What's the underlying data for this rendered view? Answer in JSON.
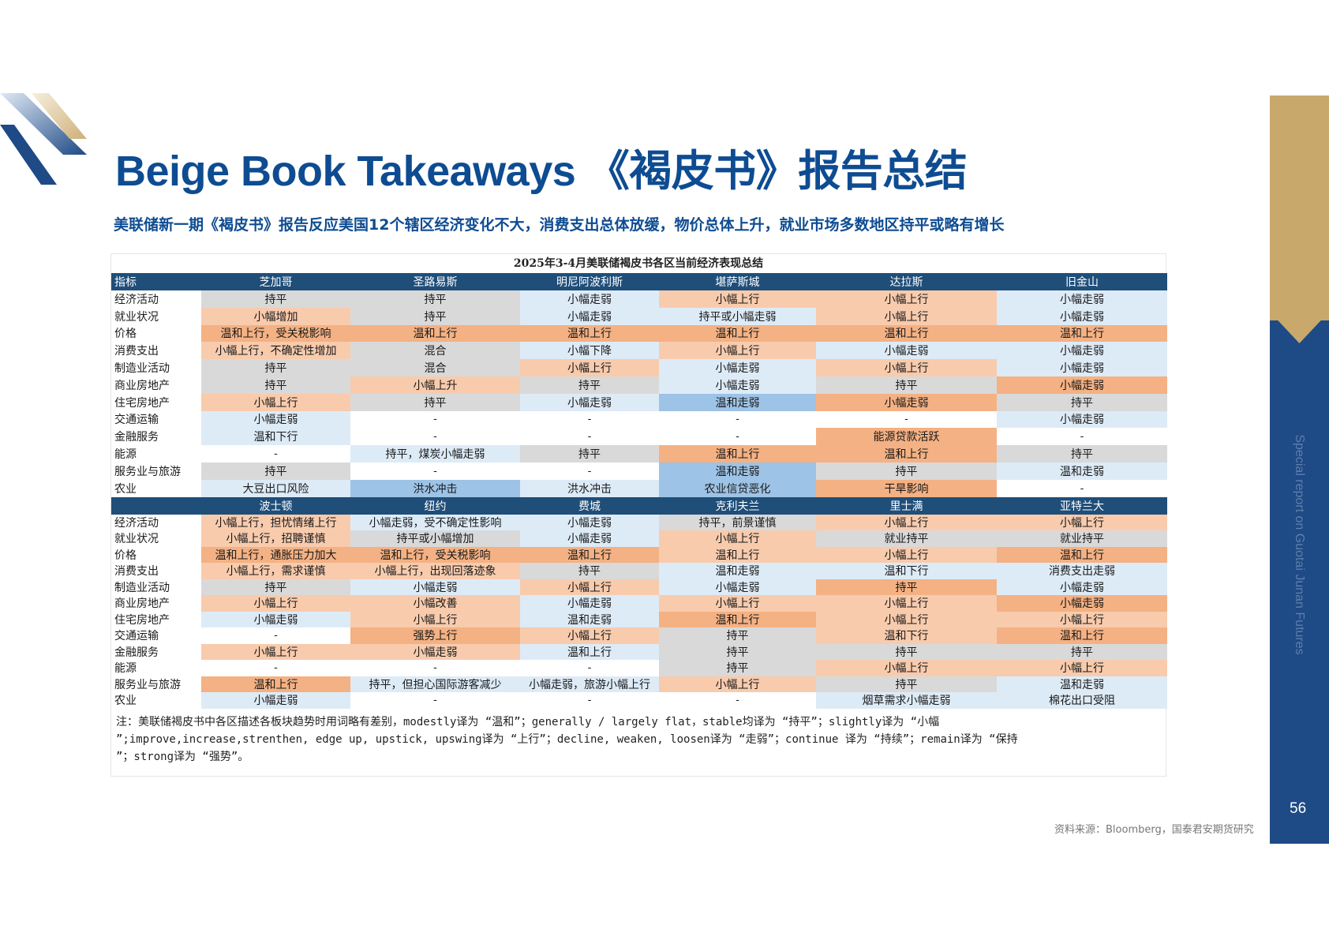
{
  "header": {
    "title": "Beige Book Takeaways 《褐皮书》报告总结",
    "subtitle": "美联储新一期《褐皮书》报告反应美国12个辖区经济变化不大，消费支出总体放缓，物价总体上升，就业市场多数地区持平或略有增长"
  },
  "side_panel": {
    "text": "Special report on Guotai Junan Futures",
    "page_number": "56",
    "colors": {
      "gold": "#c9a86b",
      "blue": "#1e4a86"
    }
  },
  "table": {
    "caption": "2025年3-4月美联储褐皮书各区当前经济表现总结",
    "corner_label": "指标",
    "cell_colors": {
      "g": "#d9d9d9",
      "lb": "#ddebf7",
      "p": "#f8cbad",
      "o": "#f4b183",
      "b": "#9dc3e6",
      "w": "#ffffff",
      "header": "#1f4e79"
    },
    "blocks": [
      {
        "districts": [
          "芝加哥",
          "圣路易斯",
          "明尼阿波利斯",
          "堪萨斯城",
          "达拉斯",
          "旧金山"
        ],
        "rows": [
          {
            "label": "经济活动",
            "cells": [
              {
                "t": "持平",
                "c": "g"
              },
              {
                "t": "持平",
                "c": "g"
              },
              {
                "t": "小幅走弱",
                "c": "lb"
              },
              {
                "t": "小幅上行",
                "c": "p"
              },
              {
                "t": "小幅上行",
                "c": "p"
              },
              {
                "t": "小幅走弱",
                "c": "lb"
              }
            ]
          },
          {
            "label": "就业状况",
            "cells": [
              {
                "t": "小幅增加",
                "c": "p"
              },
              {
                "t": "持平",
                "c": "g"
              },
              {
                "t": "小幅走弱",
                "c": "lb"
              },
              {
                "t": "持平或小幅走弱",
                "c": "lb"
              },
              {
                "t": "小幅上行",
                "c": "p"
              },
              {
                "t": "小幅走弱",
                "c": "lb"
              }
            ]
          },
          {
            "label": "价格",
            "cells": [
              {
                "t": "温和上行，受关税影响",
                "c": "o"
              },
              {
                "t": "温和上行",
                "c": "o"
              },
              {
                "t": "温和上行",
                "c": "o"
              },
              {
                "t": "温和上行",
                "c": "o"
              },
              {
                "t": "温和上行",
                "c": "o"
              },
              {
                "t": "温和上行",
                "c": "o"
              }
            ]
          },
          {
            "label": "消费支出",
            "cells": [
              {
                "t": "小幅上行，不确定性增加",
                "c": "p"
              },
              {
                "t": "混合",
                "c": "g"
              },
              {
                "t": "小幅下降",
                "c": "lb"
              },
              {
                "t": "小幅上行",
                "c": "p"
              },
              {
                "t": "小幅走弱",
                "c": "lb"
              },
              {
                "t": "小幅走弱",
                "c": "lb"
              }
            ]
          },
          {
            "label": "制造业活动",
            "cells": [
              {
                "t": "持平",
                "c": "g"
              },
              {
                "t": "混合",
                "c": "g"
              },
              {
                "t": "小幅上行",
                "c": "p"
              },
              {
                "t": "小幅走弱",
                "c": "lb"
              },
              {
                "t": "小幅上行",
                "c": "p"
              },
              {
                "t": "小幅走弱",
                "c": "lb"
              }
            ]
          },
          {
            "label": "商业房地产",
            "cells": [
              {
                "t": "持平",
                "c": "g"
              },
              {
                "t": "小幅上升",
                "c": "p"
              },
              {
                "t": "持平",
                "c": "g"
              },
              {
                "t": "小幅走弱",
                "c": "lb"
              },
              {
                "t": "持平",
                "c": "g"
              },
              {
                "t": "小幅走弱",
                "c": "o"
              }
            ]
          },
          {
            "label": "住宅房地产",
            "cells": [
              {
                "t": "小幅上行",
                "c": "p"
              },
              {
                "t": "持平",
                "c": "g"
              },
              {
                "t": "小幅走弱",
                "c": "lb"
              },
              {
                "t": "温和走弱",
                "c": "b"
              },
              {
                "t": "小幅走弱",
                "c": "o"
              },
              {
                "t": "持平",
                "c": "g"
              }
            ]
          },
          {
            "label": "交通运输",
            "cells": [
              {
                "t": "小幅走弱",
                "c": "lb"
              },
              {
                "t": "-",
                "c": "w"
              },
              {
                "t": "-",
                "c": "w"
              },
              {
                "t": "-",
                "c": "w"
              },
              {
                "t": "-",
                "c": "w"
              },
              {
                "t": "小幅走弱",
                "c": "lb"
              }
            ]
          },
          {
            "label": "金融服务",
            "cells": [
              {
                "t": "温和下行",
                "c": "lb"
              },
              {
                "t": "-",
                "c": "w"
              },
              {
                "t": "-",
                "c": "w"
              },
              {
                "t": "-",
                "c": "w"
              },
              {
                "t": "能源贷款活跃",
                "c": "o"
              },
              {
                "t": "-",
                "c": "w"
              }
            ]
          },
          {
            "label": "能源",
            "cells": [
              {
                "t": "-",
                "c": "w"
              },
              {
                "t": "持平，煤炭小幅走弱",
                "c": "lb"
              },
              {
                "t": "持平",
                "c": "g"
              },
              {
                "t": "温和上行",
                "c": "o"
              },
              {
                "t": "温和上行",
                "c": "o"
              },
              {
                "t": "持平",
                "c": "g"
              }
            ]
          },
          {
            "label": "服务业与旅游",
            "cells": [
              {
                "t": "持平",
                "c": "g"
              },
              {
                "t": "-",
                "c": "w"
              },
              {
                "t": "-",
                "c": "w"
              },
              {
                "t": "温和走弱",
                "c": "b"
              },
              {
                "t": "持平",
                "c": "g"
              },
              {
                "t": "温和走弱",
                "c": "lb"
              }
            ]
          },
          {
            "label": "农业",
            "cells": [
              {
                "t": "大豆出口风险",
                "c": "lb"
              },
              {
                "t": "洪水冲击",
                "c": "b"
              },
              {
                "t": "洪水冲击",
                "c": "lb"
              },
              {
                "t": "农业信贷恶化",
                "c": "b"
              },
              {
                "t": "干旱影响",
                "c": "o"
              },
              {
                "t": "-",
                "c": "w"
              }
            ]
          }
        ]
      },
      {
        "districts": [
          "波士顿",
          "纽约",
          "费城",
          "克利夫兰",
          "里士满",
          "亚特兰大"
        ],
        "rows": [
          {
            "label": "经济活动",
            "cells": [
              {
                "t": "小幅上行，担忧情绪上行",
                "c": "p"
              },
              {
                "t": "小幅走弱，受不确定性影响",
                "c": "lb"
              },
              {
                "t": "小幅走弱",
                "c": "lb"
              },
              {
                "t": "持平，前景谨慎",
                "c": "g"
              },
              {
                "t": "小幅上行",
                "c": "p"
              },
              {
                "t": "小幅上行",
                "c": "p"
              }
            ]
          },
          {
            "label": "就业状况",
            "cells": [
              {
                "t": "小幅上行，招聘谨慎",
                "c": "p"
              },
              {
                "t": "持平或小幅增加",
                "c": "g"
              },
              {
                "t": "小幅走弱",
                "c": "lb"
              },
              {
                "t": "小幅上行",
                "c": "p"
              },
              {
                "t": "就业持平",
                "c": "g"
              },
              {
                "t": "就业持平",
                "c": "g"
              }
            ]
          },
          {
            "label": "价格",
            "cells": [
              {
                "t": "温和上行，通胀压力加大",
                "c": "o"
              },
              {
                "t": "温和上行，受关税影响",
                "c": "o"
              },
              {
                "t": "温和上行",
                "c": "o"
              },
              {
                "t": "温和上行",
                "c": "p"
              },
              {
                "t": "小幅上行",
                "c": "p"
              },
              {
                "t": "温和上行",
                "c": "o"
              }
            ]
          },
          {
            "label": "消费支出",
            "cells": [
              {
                "t": "小幅上行，需求谨慎",
                "c": "p"
              },
              {
                "t": "小幅上行，出现回落迹象",
                "c": "p"
              },
              {
                "t": "持平",
                "c": "g"
              },
              {
                "t": "温和走弱",
                "c": "lb"
              },
              {
                "t": "温和下行",
                "c": "lb"
              },
              {
                "t": "消费支出走弱",
                "c": "lb"
              }
            ]
          },
          {
            "label": "制造业活动",
            "cells": [
              {
                "t": "持平",
                "c": "g"
              },
              {
                "t": "小幅走弱",
                "c": "lb"
              },
              {
                "t": "小幅上行",
                "c": "p"
              },
              {
                "t": "小幅走弱",
                "c": "lb"
              },
              {
                "t": "持平",
                "c": "o"
              },
              {
                "t": "小幅走弱",
                "c": "lb"
              }
            ]
          },
          {
            "label": "商业房地产",
            "cells": [
              {
                "t": "小幅上行",
                "c": "p"
              },
              {
                "t": "小幅改善",
                "c": "p"
              },
              {
                "t": "小幅走弱",
                "c": "lb"
              },
              {
                "t": "小幅上行",
                "c": "p"
              },
              {
                "t": "小幅上行",
                "c": "p"
              },
              {
                "t": "小幅走弱",
                "c": "o"
              }
            ]
          },
          {
            "label": "住宅房地产",
            "cells": [
              {
                "t": "小幅走弱",
                "c": "lb"
              },
              {
                "t": "小幅上行",
                "c": "p"
              },
              {
                "t": "温和走弱",
                "c": "lb"
              },
              {
                "t": "温和上行",
                "c": "o"
              },
              {
                "t": "小幅上行",
                "c": "p"
              },
              {
                "t": "小幅上行",
                "c": "p"
              }
            ]
          },
          {
            "label": "交通运输",
            "cells": [
              {
                "t": "-",
                "c": "w"
              },
              {
                "t": "强势上行",
                "c": "o"
              },
              {
                "t": "小幅上行",
                "c": "p"
              },
              {
                "t": "持平",
                "c": "g"
              },
              {
                "t": "温和下行",
                "c": "p"
              },
              {
                "t": "温和上行",
                "c": "o"
              }
            ]
          },
          {
            "label": "金融服务",
            "cells": [
              {
                "t": "小幅上行",
                "c": "p"
              },
              {
                "t": "小幅走弱",
                "c": "p"
              },
              {
                "t": "温和上行",
                "c": "lb"
              },
              {
                "t": "持平",
                "c": "g"
              },
              {
                "t": "持平",
                "c": "g"
              },
              {
                "t": "持平",
                "c": "g"
              }
            ]
          },
          {
            "label": "能源",
            "cells": [
              {
                "t": "-",
                "c": "w"
              },
              {
                "t": "-",
                "c": "w"
              },
              {
                "t": "-",
                "c": "w"
              },
              {
                "t": "持平",
                "c": "g"
              },
              {
                "t": "小幅上行",
                "c": "p"
              },
              {
                "t": "小幅上行",
                "c": "p"
              }
            ]
          },
          {
            "label": "服务业与旅游",
            "cells": [
              {
                "t": "温和上行",
                "c": "o"
              },
              {
                "t": "持平，但担心国际游客减少",
                "c": "lb"
              },
              {
                "t": "小幅走弱，旅游小幅上行",
                "c": "lb"
              },
              {
                "t": "小幅上行",
                "c": "p"
              },
              {
                "t": "持平",
                "c": "g"
              },
              {
                "t": "温和走弱",
                "c": "lb"
              }
            ]
          },
          {
            "label": "农业",
            "cells": [
              {
                "t": "小幅走弱",
                "c": "lb"
              },
              {
                "t": "-",
                "c": "w"
              },
              {
                "t": "-",
                "c": "w"
              },
              {
                "t": "-",
                "c": "w"
              },
              {
                "t": "烟草需求小幅走弱",
                "c": "lb"
              },
              {
                "t": "棉花出口受阻",
                "c": "lb"
              }
            ]
          }
        ]
      }
    ],
    "note_lines": [
      "注：美联储褐皮书中各区描述各板块趋势时用词略有差别，modestly译为 “温和”；generally / largely flat，stable均译为 “持平”；slightly译为 “小幅",
      "”;improve,increase,strenthen, edge up, upstick, upswing译为 “上行”；decline, weaken, loosen译为 “走弱”；continue 译为 “持续”；remain译为 “保持",
      "”；strong译为 “强势”。"
    ]
  },
  "footer": {
    "source": "资料来源：Bloomberg，国泰君安期货研究"
  }
}
